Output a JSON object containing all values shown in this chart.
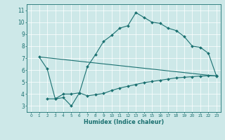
{
  "title": "",
  "xlabel": "Humidex (Indice chaleur)",
  "xlim": [
    -0.5,
    23.5
  ],
  "ylim": [
    2.5,
    11.5
  ],
  "xticks": [
    0,
    1,
    2,
    3,
    4,
    5,
    6,
    7,
    8,
    9,
    10,
    11,
    12,
    13,
    14,
    15,
    16,
    17,
    18,
    19,
    20,
    21,
    22,
    23
  ],
  "yticks": [
    3,
    4,
    5,
    6,
    7,
    8,
    9,
    10,
    11
  ],
  "bg_color": "#cde8e8",
  "line_color": "#1a7070",
  "line1_x": [
    1,
    2,
    3,
    4,
    5,
    6,
    7,
    8,
    9,
    10,
    11,
    12,
    13,
    14,
    15,
    16,
    17,
    18,
    19,
    20,
    21,
    22,
    23
  ],
  "line1_y": [
    7.1,
    6.1,
    3.6,
    3.7,
    3.0,
    4.1,
    6.3,
    7.3,
    8.4,
    8.9,
    9.5,
    9.7,
    10.8,
    10.4,
    10.0,
    9.9,
    9.5,
    9.3,
    8.8,
    8.0,
    7.9,
    7.4,
    5.5
  ],
  "line2_x": [
    2,
    3,
    4,
    5,
    6,
    7,
    8,
    9,
    10,
    11,
    12,
    13,
    14,
    15,
    16,
    17,
    18,
    19,
    20,
    21,
    22,
    23
  ],
  "line2_y": [
    3.6,
    3.6,
    4.0,
    4.0,
    4.1,
    3.85,
    3.95,
    4.05,
    4.3,
    4.5,
    4.65,
    4.8,
    4.95,
    5.05,
    5.15,
    5.25,
    5.35,
    5.4,
    5.45,
    5.5,
    5.52,
    5.53
  ],
  "line3_x": [
    1,
    23
  ],
  "line3_y": [
    7.1,
    5.5
  ]
}
